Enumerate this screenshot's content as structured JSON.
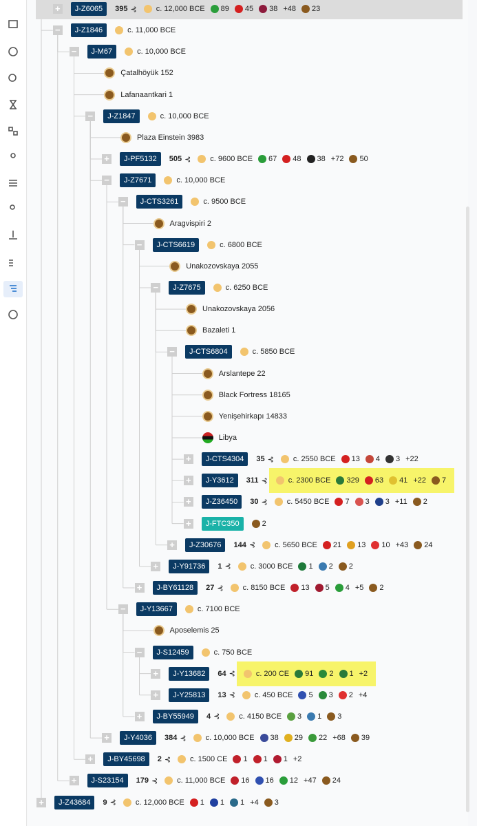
{
  "tree": {
    "rows": [
      {
        "level": 1,
        "expanded": false,
        "selected": true,
        "label": "J-Z6065",
        "count": "395",
        "age": "c. 12,000 BCE",
        "badges": [
          {
            "text": "89",
            "color": "#2a9d3a"
          },
          {
            "text": "45",
            "color": "#d42020"
          },
          {
            "text": "38",
            "color": "#8d1b3d"
          },
          {
            "text": "+48"
          },
          {
            "text": "23",
            "color": "#8a5a1f"
          }
        ]
      },
      {
        "level": 1,
        "expanded": true,
        "label": "J-Z1846",
        "age": "c. 11,000 BCE"
      },
      {
        "level": 2,
        "expanded": true,
        "label": "J-M67",
        "age": "c. 10,000 BCE"
      },
      {
        "level": 3,
        "leaf": true,
        "label": "Çatalhöyük 152"
      },
      {
        "level": 3,
        "leaf": true,
        "label": "Lafanaantkari 1"
      },
      {
        "level": 3,
        "expanded": true,
        "label": "J-Z1847",
        "age": "c. 10,000 BCE"
      },
      {
        "level": 4,
        "leaf": true,
        "label": "Plaza Einstein 3983"
      },
      {
        "level": 4,
        "expanded": false,
        "label": "J-PF5132",
        "count": "505",
        "age": "c. 9600 BCE",
        "badges": [
          {
            "text": "67",
            "color": "#2a9d3a"
          },
          {
            "text": "48",
            "color": "#d42020"
          },
          {
            "text": "38",
            "color": "#222222"
          },
          {
            "text": "+72"
          },
          {
            "text": "50",
            "color": "#8a5a1f"
          }
        ]
      },
      {
        "level": 4,
        "expanded": true,
        "label": "J-Z7671",
        "age": "c. 10,000 BCE"
      },
      {
        "level": 5,
        "expanded": true,
        "label": "J-CTS3261",
        "age": "c. 9500 BCE"
      },
      {
        "level": 6,
        "leaf": true,
        "label": "Aragvispiri 2"
      },
      {
        "level": 6,
        "expanded": true,
        "label": "J-CTS6619",
        "age": "c. 6800 BCE"
      },
      {
        "level": 7,
        "leaf": true,
        "label": "Unakozovskaya 2055"
      },
      {
        "level": 7,
        "expanded": true,
        "label": "J-Z7675",
        "age": "c. 6250 BCE"
      },
      {
        "level": 8,
        "leaf": true,
        "label": "Unakozovskaya 2056"
      },
      {
        "level": 8,
        "leaf": true,
        "label": "Bazaleti 1"
      },
      {
        "level": 8,
        "expanded": true,
        "label": "J-CTS6804",
        "age": "c. 5850 BCE"
      },
      {
        "level": 9,
        "leaf": true,
        "label": "Arslantepe 22"
      },
      {
        "level": 9,
        "leaf": true,
        "label": "Black Fortress 18165"
      },
      {
        "level": 9,
        "leaf": true,
        "label": "Yenişehirkapı 14833"
      },
      {
        "level": 9,
        "leaf": true,
        "flag": true,
        "label": "Libya"
      },
      {
        "level": 9,
        "expanded": false,
        "label": "J-CTS4304",
        "count": "35",
        "age": "c. 2550 BCE",
        "badges": [
          {
            "text": "13",
            "color": "#d42020"
          },
          {
            "text": "4",
            "color": "#c4473a"
          },
          {
            "text": "3",
            "color": "#333333"
          },
          {
            "text": "+22"
          }
        ]
      },
      {
        "level": 9,
        "expanded": false,
        "highlight": true,
        "label": "J-Y3612",
        "count": "311",
        "age": "c. 2300 BCE",
        "badges": [
          {
            "text": "329",
            "color": "#2a7a3a"
          },
          {
            "text": "63",
            "color": "#d42020"
          },
          {
            "text": "41",
            "color": "#e0c030"
          },
          {
            "text": "+22"
          },
          {
            "text": "7",
            "color": "#8a5a1f"
          }
        ]
      },
      {
        "level": 9,
        "expanded": false,
        "label": "J-Z36450",
        "count": "30",
        "age": "c. 5450 BCE",
        "badges": [
          {
            "text": "7",
            "color": "#d42020"
          },
          {
            "text": "3",
            "color": "#d9534f"
          },
          {
            "text": "3",
            "color": "#1f3f8a"
          },
          {
            "text": "+11"
          },
          {
            "text": "2",
            "color": "#8a5a1f"
          }
        ]
      },
      {
        "level": 9,
        "expanded": false,
        "teal": true,
        "label": "J-FTC350",
        "badges": [
          {
            "text": "2",
            "color": "#8a5a1f"
          }
        ]
      },
      {
        "level": 8,
        "expanded": false,
        "label": "J-Z30676",
        "count": "144",
        "age": "c. 5650 BCE",
        "badges": [
          {
            "text": "21",
            "color": "#d42020"
          },
          {
            "text": "13",
            "color": "#e0a020"
          },
          {
            "text": "10",
            "color": "#e03030"
          },
          {
            "text": "+43"
          },
          {
            "text": "24",
            "color": "#8a5a1f"
          }
        ]
      },
      {
        "level": 7,
        "expanded": false,
        "label": "J-Y91736",
        "count": "1",
        "age": "c. 3000 BCE",
        "badges": [
          {
            "text": "1",
            "color": "#1e7a3a"
          },
          {
            "text": "2",
            "color": "#3a7ab0"
          },
          {
            "text": "2",
            "color": "#8a5a1f"
          }
        ]
      },
      {
        "level": 6,
        "expanded": false,
        "label": "J-BY61128",
        "count": "27",
        "age": "c. 8150 BCE",
        "badges": [
          {
            "text": "13",
            "color": "#c0202a"
          },
          {
            "text": "5",
            "color": "#a01a30"
          },
          {
            "text": "4",
            "color": "#2a9d3a"
          },
          {
            "text": "+5"
          },
          {
            "text": "2",
            "color": "#8a5a1f"
          }
        ]
      },
      {
        "level": 5,
        "expanded": true,
        "label": "J-Y13667",
        "age": "c. 7100 BCE"
      },
      {
        "level": 6,
        "leaf": true,
        "label": "Aposelemis 25"
      },
      {
        "level": 6,
        "expanded": true,
        "label": "J-S12459",
        "age": "c. 750 BCE"
      },
      {
        "level": 7,
        "expanded": false,
        "highlight": true,
        "label": "J-Y13682",
        "count": "64",
        "age": "c. 200 CE",
        "badges": [
          {
            "text": "91",
            "color": "#2a7a3a"
          },
          {
            "text": "2",
            "color": "#2a8a3a"
          },
          {
            "text": "1",
            "color": "#2a7a3a"
          },
          {
            "text": "+2"
          }
        ]
      },
      {
        "level": 7,
        "expanded": false,
        "label": "J-Y25813",
        "count": "13",
        "age": "c. 450 BCE",
        "badges": [
          {
            "text": "5",
            "color": "#3050b0"
          },
          {
            "text": "3",
            "color": "#2a8a3a"
          },
          {
            "text": "2",
            "color": "#e03030"
          },
          {
            "text": "+4"
          }
        ]
      },
      {
        "level": 6,
        "expanded": false,
        "label": "J-BY55949",
        "count": "4",
        "age": "c. 4150 BCE",
        "badges": [
          {
            "text": "3",
            "color": "#5aa040"
          },
          {
            "text": "1",
            "color": "#3a7ab0"
          },
          {
            "text": "3",
            "color": "#8a5a1f"
          }
        ]
      },
      {
        "level": 4,
        "expanded": false,
        "label": "J-Y4036",
        "count": "384",
        "age": "c. 10,000 BCE",
        "badges": [
          {
            "text": "38",
            "color": "#3a4a9a"
          },
          {
            "text": "29",
            "color": "#e0b020"
          },
          {
            "text": "22",
            "color": "#3a9a3a"
          },
          {
            "text": "+68"
          },
          {
            "text": "39",
            "color": "#8a5a1f"
          }
        ]
      },
      {
        "level": 3,
        "expanded": false,
        "label": "J-BY45698",
        "count": "2",
        "age": "c. 1500 CE",
        "badges": [
          {
            "text": "1",
            "color": "#c0202a"
          },
          {
            "text": "1",
            "color": "#c0202a"
          },
          {
            "text": "1",
            "color": "#b01a30"
          },
          {
            "text": "+2"
          }
        ]
      },
      {
        "level": 2,
        "expanded": false,
        "label": "J-S23154",
        "count": "179",
        "age": "c. 11,000 BCE",
        "badges": [
          {
            "text": "16",
            "color": "#c0202a"
          },
          {
            "text": "16",
            "color": "#3050b0"
          },
          {
            "text": "12",
            "color": "#2a9d3a"
          },
          {
            "text": "+47"
          },
          {
            "text": "24",
            "color": "#8a5a1f"
          }
        ]
      },
      {
        "level": 0,
        "expanded": false,
        "label": "J-Z43684",
        "count": "9",
        "age": "c. 12,000 BCE",
        "badges": [
          {
            "text": "1",
            "color": "#d42020"
          },
          {
            "text": "1",
            "color": "#2040a0"
          },
          {
            "text": "1",
            "color": "#2a6a8a"
          },
          {
            "text": "+4"
          },
          {
            "text": "3",
            "color": "#8a5a1f"
          }
        ]
      }
    ]
  }
}
